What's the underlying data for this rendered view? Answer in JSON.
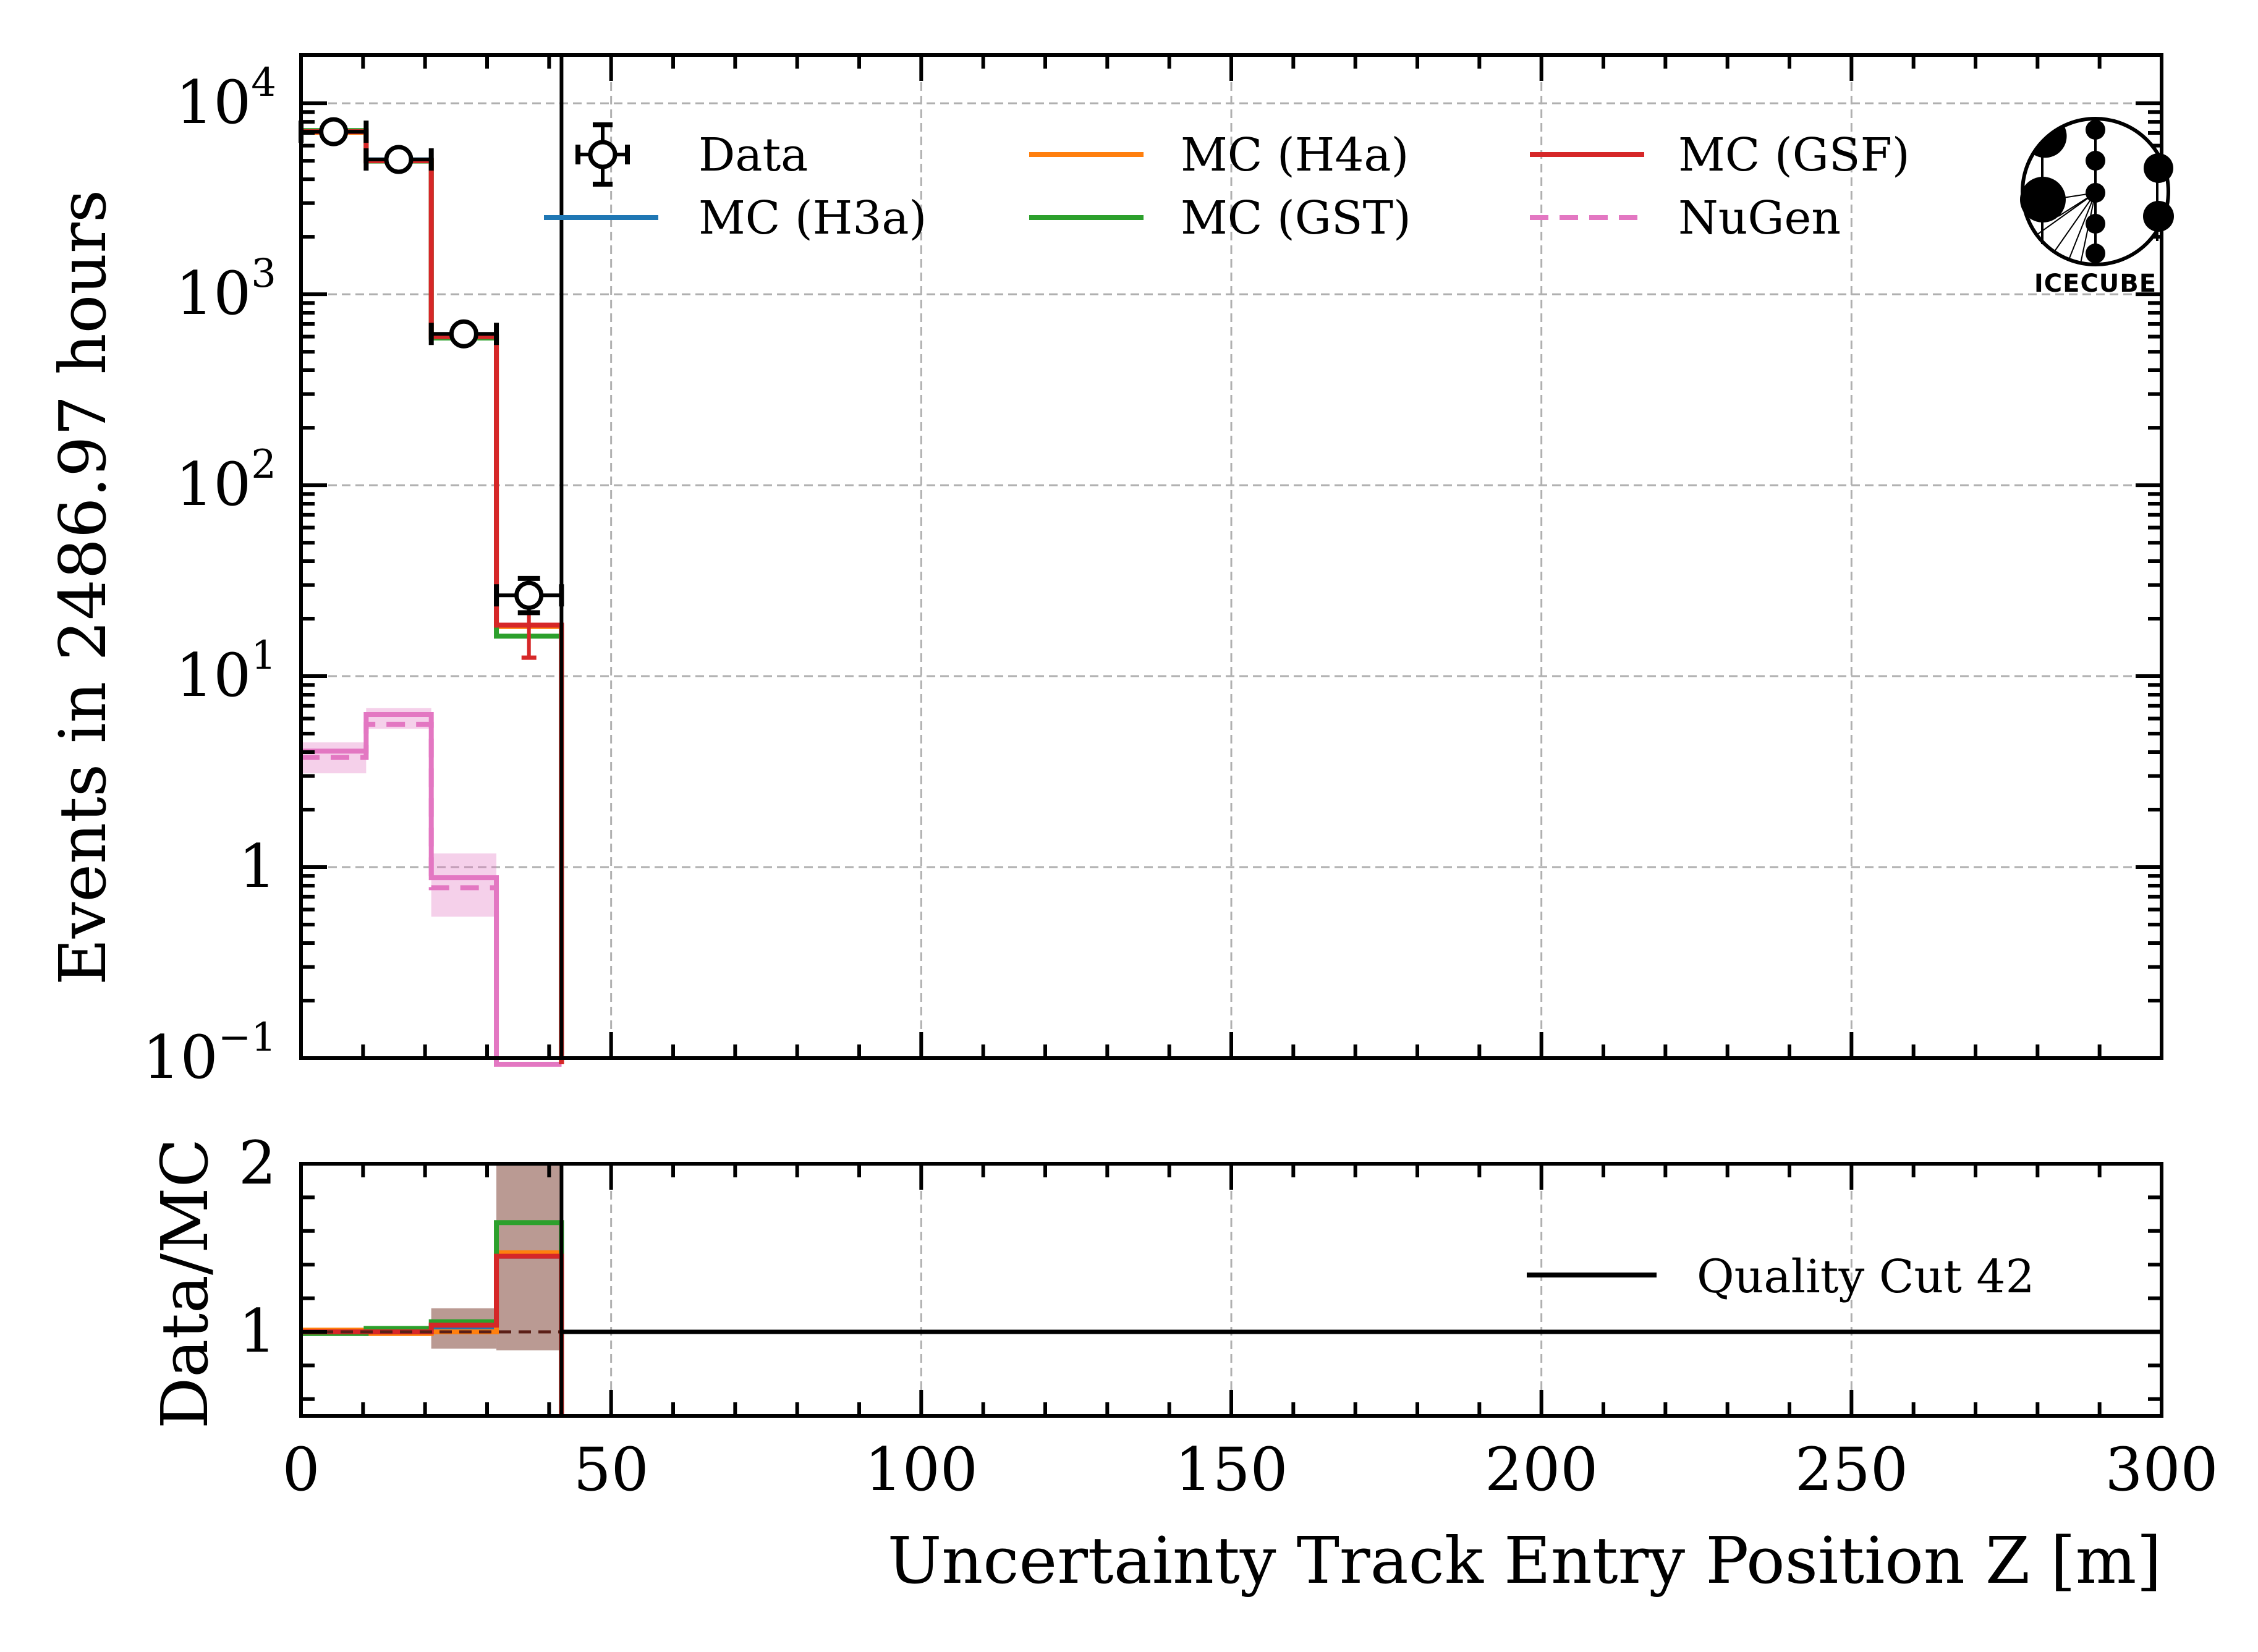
{
  "chart_data": [
    {
      "panel": "main",
      "type": "line",
      "subtype": "step-histogram",
      "title": "",
      "xlabel": "Uncertainty Track Entry Position Z [m]",
      "ylabel": "Events in 2486.97 hours",
      "xlim": [
        0,
        300
      ],
      "ylim": [
        0.1,
        17900
      ],
      "yscale": "log",
      "grid": true,
      "legend_position": "top",
      "legend_columns": 3,
      "xticks": [
        0,
        50,
        100,
        150,
        200,
        250,
        300
      ],
      "yticks": [
        {
          "value": 10000,
          "base": "10",
          "exp": "4"
        },
        {
          "value": 1000,
          "base": "10",
          "exp": "3"
        },
        {
          "value": 100,
          "base": "10",
          "exp": "2"
        },
        {
          "value": 10,
          "base": "10",
          "exp": "1"
        },
        {
          "value": 1,
          "base": "1",
          "exp": ""
        },
        {
          "value": 0.1,
          "base": "10",
          "exp": "−1"
        }
      ],
      "bin_edges": [
        0,
        10.5,
        21,
        31.5,
        42
      ],
      "series": [
        {
          "name": "MC (H3a)",
          "color": "#1f77b4",
          "style": "solid",
          "values": [
            7100,
            5050,
            605,
            18.3
          ]
        },
        {
          "name": "MC (H4a)",
          "color": "#ff7f0e",
          "style": "solid",
          "values": [
            7050,
            5000,
            600,
            18.2
          ]
        },
        {
          "name": "MC (GST)",
          "color": "#2ca02c",
          "style": "solid",
          "values": [
            7200,
            4980,
            590,
            16.2
          ]
        },
        {
          "name": "MC (GSF)",
          "color": "#d62728",
          "style": "solid",
          "values": [
            7100,
            5000,
            600,
            18.5
          ]
        },
        {
          "name": "NuGen",
          "color": "#e377c2",
          "style": "dashed",
          "values": [
            3.75,
            5.6,
            0.78,
            0
          ],
          "band_low": [
            3.1,
            5.3,
            0.55,
            0
          ],
          "band_high": [
            4.5,
            6.8,
            1.18,
            0
          ]
        },
        {
          "name": "NuGen (alt)",
          "color": "#e377c2",
          "style": "solid",
          "legend": false,
          "values": [
            4.05,
            6.3,
            0.88,
            0
          ]
        }
      ],
      "data": {
        "name": "Data",
        "x": [
          5.25,
          15.75,
          26.25,
          36.75
        ],
        "xerr": 5.25,
        "y": [
          7100,
          5080,
          620,
          26.5
        ],
        "yerr_low": [
          7020,
          5010,
          595,
          21.5
        ],
        "yerr_high": [
          7180,
          5150,
          645,
          32.5
        ]
      },
      "mc_errorbar_bin4": {
        "x": 36.75,
        "low": 12.5,
        "high": 21.5
      },
      "vline": {
        "name": "Quality Cut 42",
        "x": 42,
        "color": "#000000"
      },
      "legend": [
        {
          "label": "Data",
          "marker": "open-circle-errorbar",
          "color": "#000000"
        },
        {
          "label": "MC (H3a)",
          "color": "#1f77b4",
          "style": "solid"
        },
        {
          "label": "MC (H4a)",
          "color": "#ff7f0e",
          "style": "solid"
        },
        {
          "label": "MC (GST)",
          "color": "#2ca02c",
          "style": "solid"
        },
        {
          "label": "MC (GSF)",
          "color": "#d62728",
          "style": "solid"
        },
        {
          "label": "NuGen",
          "color": "#e377c2",
          "style": "dashed"
        }
      ]
    },
    {
      "panel": "ratio",
      "type": "line",
      "subtype": "step-histogram",
      "xlabel": "Uncertainty Track Entry Position Z [m]",
      "ylabel": "Data/MC",
      "xlim": [
        0,
        300
      ],
      "ylim": [
        0.5,
        2.0
      ],
      "yticks": [
        1,
        2
      ],
      "xticks": [
        0,
        50,
        100,
        150,
        200,
        250,
        300
      ],
      "grid": true,
      "legend_position": "right",
      "bin_edges": [
        0,
        10.5,
        21,
        31.5,
        42
      ],
      "series": [
        {
          "name": "MC (H3a)",
          "color": "#1f77b4",
          "values": [
            1.0,
            1.0,
            1.03,
            1.45
          ]
        },
        {
          "name": "MC (H4a)",
          "color": "#ff7f0e",
          "values": [
            1.01,
            0.99,
            1.0,
            1.47
          ]
        },
        {
          "name": "MC (GST)",
          "color": "#2ca02c",
          "values": [
            0.99,
            1.02,
            1.06,
            1.65
          ]
        },
        {
          "name": "MC (GSF)",
          "color": "#d62728",
          "values": [
            1.0,
            1.0,
            1.04,
            1.45
          ]
        }
      ],
      "bands": [
        {
          "color": "#8c564b",
          "low": [
            0.99,
            0.98,
            0.9,
            0.89
          ],
          "high": [
            1.01,
            1.02,
            1.14,
            2.0
          ]
        }
      ],
      "reference_line": 1.0,
      "vline": {
        "name": "Quality Cut 42",
        "x": 42
      },
      "legend": [
        {
          "label": "Quality Cut 42",
          "color": "#000000",
          "style": "solid"
        }
      ]
    }
  ],
  "logo": {
    "text": "IceCube",
    "text_display": "ICECUBE"
  }
}
